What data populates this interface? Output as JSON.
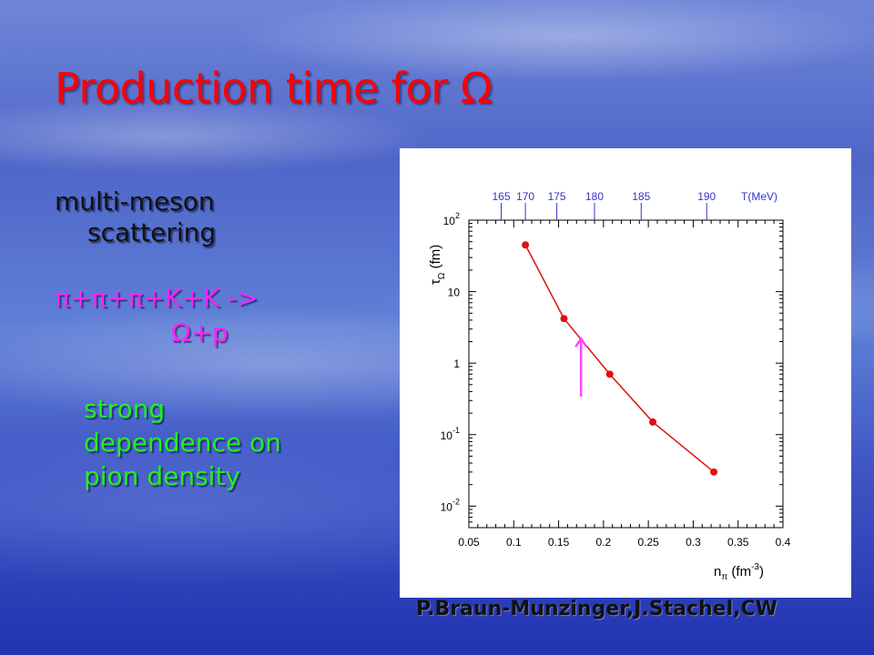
{
  "slide": {
    "title": "Production time for Ω",
    "left_text": {
      "line1": "multi-meson",
      "line1b": "scattering",
      "line2": "π+π+π+K+K ->",
      "line3": "Ω+p",
      "line4": "strong",
      "line4b": "dependence on",
      "line4c": "pion density"
    },
    "credit": "P.Braun-Munzinger,J.Stachel,CW"
  },
  "colors": {
    "title": "#ff0000",
    "curve": "#dd1111",
    "arrow": "#ff44ff",
    "green_text": "#22ee22",
    "magenta_text": "#ff22ff"
  },
  "chart_data": {
    "type": "line",
    "title": "",
    "xlabel": "n",
    "xlabel_sub": "π",
    "xlabel_unit": "(fm",
    "xlabel_unit_sup": "-3",
    "xlabel_unit_end": ")",
    "ylabel": "τ",
    "ylabel_sub": "Ω",
    "ylabel_unit": "(fm)",
    "xlim": [
      0.05,
      0.4
    ],
    "ylim": [
      0.005,
      100
    ],
    "yscale": "log",
    "x_ticks": [
      "0.05",
      "0.1",
      "0.15",
      "0.2",
      "0.25",
      "0.3",
      "0.35",
      "0.4"
    ],
    "y_ticks": [
      {
        "base": "10",
        "sup": "2",
        "value": 100
      },
      {
        "base": "10",
        "sup": "",
        "value": 10
      },
      {
        "base": "1",
        "sup": "",
        "value": 1
      },
      {
        "base": "10",
        "sup": "-1",
        "value": 0.1
      },
      {
        "base": "10",
        "sup": "-2",
        "value": 0.01
      }
    ],
    "top_axis": {
      "label": "T(MeV)",
      "ticks": [
        {
          "label": "165",
          "x": 0.086
        },
        {
          "label": "170",
          "x": 0.113
        },
        {
          "label": "175",
          "x": 0.148
        },
        {
          "label": "180",
          "x": 0.19
        },
        {
          "label": "185",
          "x": 0.242
        },
        {
          "label": "190",
          "x": 0.315
        }
      ]
    },
    "series": [
      {
        "x": [
          0.113,
          0.156,
          0.207,
          0.255,
          0.323
        ],
        "y": [
          45,
          4.2,
          0.7,
          0.15,
          0.03
        ]
      }
    ],
    "annotation": {
      "type": "arrow",
      "direction": "up",
      "x": 0.175,
      "y_from": 0.34,
      "y_to": 2.2
    }
  }
}
